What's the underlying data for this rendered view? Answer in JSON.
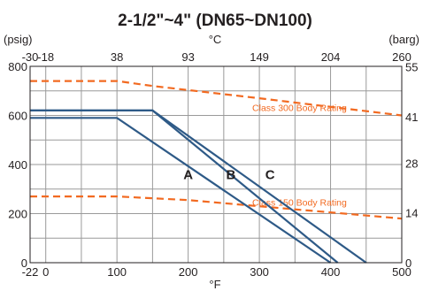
{
  "chart_data": {
    "type": "line",
    "title": "2-1/2\"~4\"  (DN65~DN100)",
    "left_unit": "(psig)",
    "right_unit": "(barg)",
    "top_unit": "°C",
    "bottom_unit": "°F",
    "x_range_f": [
      -22,
      500
    ],
    "y_range_psig": [
      0,
      800
    ],
    "bottom_ticks": [
      {
        "label": "-22",
        "value": -22
      },
      {
        "label": "0",
        "value": 0
      },
      {
        "label": "100",
        "value": 100
      },
      {
        "label": "200",
        "value": 200
      },
      {
        "label": "300",
        "value": 300
      },
      {
        "label": "400",
        "value": 400
      },
      {
        "label": "500",
        "value": 500
      }
    ],
    "top_ticks": [
      {
        "label": "-30",
        "value": -22
      },
      {
        "label": "-18",
        "value": 0
      },
      {
        "label": "38",
        "value": 100
      },
      {
        "label": "93",
        "value": 200
      },
      {
        "label": "149",
        "value": 300
      },
      {
        "label": "204",
        "value": 400
      },
      {
        "label": "260",
        "value": 500
      }
    ],
    "left_ticks": [
      {
        "label": "0",
        "value": 0
      },
      {
        "label": "200",
        "value": 200
      },
      {
        "label": "400",
        "value": 400
      },
      {
        "label": "600",
        "value": 600
      },
      {
        "label": "800",
        "value": 800
      }
    ],
    "right_ticks": [
      {
        "label": "0",
        "value": 0
      },
      {
        "label": "14",
        "value": 203
      },
      {
        "label": "28",
        "value": 406
      },
      {
        "label": "41",
        "value": 595
      },
      {
        "label": "55",
        "value": 798
      }
    ],
    "grid": true,
    "series": [
      {
        "name": "A",
        "color": "#2e5a87",
        "style": "solid",
        "points": [
          [
            -22,
            590
          ],
          [
            100,
            590
          ],
          [
            400,
            0
          ]
        ],
        "label_at": [
          200,
          340
        ]
      },
      {
        "name": "B",
        "color": "#2e5a87",
        "style": "solid",
        "points": [
          [
            -22,
            620
          ],
          [
            150,
            620
          ],
          [
            410,
            0
          ]
        ],
        "label_at": [
          260,
          340
        ]
      },
      {
        "name": "C",
        "color": "#2e5a87",
        "style": "solid",
        "points": [
          [
            -22,
            620
          ],
          [
            150,
            620
          ],
          [
            450,
            0
          ]
        ],
        "label_at": [
          315,
          340
        ]
      }
    ],
    "reference_lines": [
      {
        "name": "Class 300 Body Rating",
        "color": "#f26a21",
        "style": "dashed",
        "points": [
          [
            -22,
            740
          ],
          [
            100,
            740
          ],
          [
            150,
            720
          ],
          [
            300,
            670
          ],
          [
            500,
            600
          ]
        ],
        "label_at": [
          290,
          618
        ]
      },
      {
        "name": "Class 150 Body Rating",
        "color": "#f26a21",
        "style": "dashed",
        "points": [
          [
            -22,
            270
          ],
          [
            100,
            270
          ],
          [
            200,
            255
          ],
          [
            300,
            230
          ],
          [
            500,
            180
          ]
        ],
        "label_at": [
          290,
          232
        ]
      }
    ]
  }
}
